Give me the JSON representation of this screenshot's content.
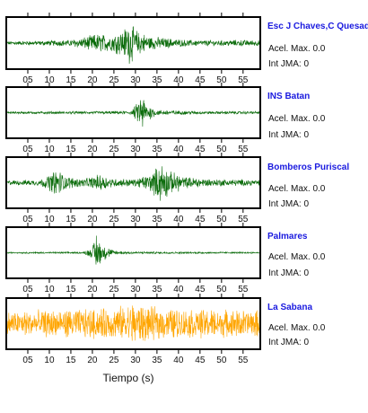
{
  "chart_data": {
    "type": "line",
    "xlabel": "Tiempo (s)",
    "xlim": [
      0,
      59
    ],
    "x_ticks": [
      "05",
      "10",
      "15",
      "20",
      "25",
      "30",
      "35",
      "40",
      "45",
      "50",
      "55"
    ],
    "grid": false,
    "legend": "none",
    "panels": [
      {
        "station": "Esc J Chaves,C Quesada",
        "acel_label": "Acel. Max.",
        "acel_value": "0.0",
        "jma_label": "Int JMA:",
        "jma_value": "0",
        "color": "#0a6b0a",
        "series": [
          {
            "values": [
              {
                "x": 0,
                "amp": 0.08
              },
              {
                "x": 8,
                "amp": 0.1
              },
              {
                "x": 15,
                "amp": 0.14
              },
              {
                "x": 19,
                "amp": 0.3
              },
              {
                "x": 21,
                "amp": 0.42
              },
              {
                "x": 24,
                "amp": 0.35
              },
              {
                "x": 27,
                "amp": 0.55
              },
              {
                "x": 28.5,
                "amp": 0.92
              },
              {
                "x": 30,
                "amp": 0.6
              },
              {
                "x": 33,
                "amp": 0.32
              },
              {
                "x": 37,
                "amp": 0.22
              },
              {
                "x": 42,
                "amp": 0.14
              },
              {
                "x": 48,
                "amp": 0.12
              },
              {
                "x": 55,
                "amp": 0.14
              },
              {
                "x": 59,
                "amp": 0.12
              }
            ]
          }
        ]
      },
      {
        "station": "INS Batan",
        "acel_label": "Acel. Max.",
        "acel_value": "0.0",
        "jma_label": "Int JMA:",
        "jma_value": "0",
        "color": "#0a6b0a",
        "series": [
          {
            "values": [
              {
                "x": 0,
                "amp": 0.05
              },
              {
                "x": 20,
                "amp": 0.06
              },
              {
                "x": 29,
                "amp": 0.08
              },
              {
                "x": 30.5,
                "amp": 0.45
              },
              {
                "x": 31.5,
                "amp": 0.95
              },
              {
                "x": 32.5,
                "amp": 0.4
              },
              {
                "x": 35,
                "amp": 0.12
              },
              {
                "x": 45,
                "amp": 0.07
              },
              {
                "x": 59,
                "amp": 0.06
              }
            ]
          }
        ]
      },
      {
        "station": "Bomberos Puriscal",
        "acel_label": "Acel. Max.",
        "acel_value": "0.0",
        "jma_label": "Int JMA:",
        "jma_value": "0",
        "color": "#0a6b0a",
        "series": [
          {
            "values": [
              {
                "x": 0,
                "amp": 0.1
              },
              {
                "x": 8,
                "amp": 0.14
              },
              {
                "x": 10,
                "amp": 0.35
              },
              {
                "x": 12,
                "amp": 0.6
              },
              {
                "x": 14,
                "amp": 0.28
              },
              {
                "x": 18,
                "amp": 0.16
              },
              {
                "x": 22,
                "amp": 0.4
              },
              {
                "x": 24,
                "amp": 0.2
              },
              {
                "x": 30,
                "amp": 0.16
              },
              {
                "x": 34,
                "amp": 0.45
              },
              {
                "x": 36,
                "amp": 0.95
              },
              {
                "x": 38,
                "amp": 0.5
              },
              {
                "x": 42,
                "amp": 0.25
              },
              {
                "x": 48,
                "amp": 0.16
              },
              {
                "x": 55,
                "amp": 0.14
              },
              {
                "x": 59,
                "amp": 0.12
              }
            ]
          }
        ]
      },
      {
        "station": "Palmares",
        "acel_label": "Acel. Max.",
        "acel_value": "0.0",
        "jma_label": "Int JMA:",
        "jma_value": "0",
        "color": "#0a6b0a",
        "series": [
          {
            "values": [
              {
                "x": 0,
                "amp": 0.03
              },
              {
                "x": 18,
                "amp": 0.04
              },
              {
                "x": 20,
                "amp": 0.25
              },
              {
                "x": 21,
                "amp": 0.95
              },
              {
                "x": 22,
                "amp": 0.4
              },
              {
                "x": 25,
                "amp": 0.1
              },
              {
                "x": 30,
                "amp": 0.05
              },
              {
                "x": 45,
                "amp": 0.04
              },
              {
                "x": 59,
                "amp": 0.03
              }
            ]
          }
        ]
      },
      {
        "station": "La Sabana",
        "acel_label": "Acel. Max.",
        "acel_value": "0.0",
        "jma_label": "Int JMA:",
        "jma_value": "0",
        "color": "#ffa500",
        "series": [
          {
            "values": [
              {
                "x": 0,
                "amp": 0.55
              },
              {
                "x": 10,
                "amp": 0.6
              },
              {
                "x": 20,
                "amp": 0.65
              },
              {
                "x": 25,
                "amp": 0.7
              },
              {
                "x": 29.5,
                "amp": 0.95
              },
              {
                "x": 33,
                "amp": 0.75
              },
              {
                "x": 40,
                "amp": 0.65
              },
              {
                "x": 50,
                "amp": 0.62
              },
              {
                "x": 59,
                "amp": 0.6
              }
            ]
          }
        ]
      }
    ]
  }
}
